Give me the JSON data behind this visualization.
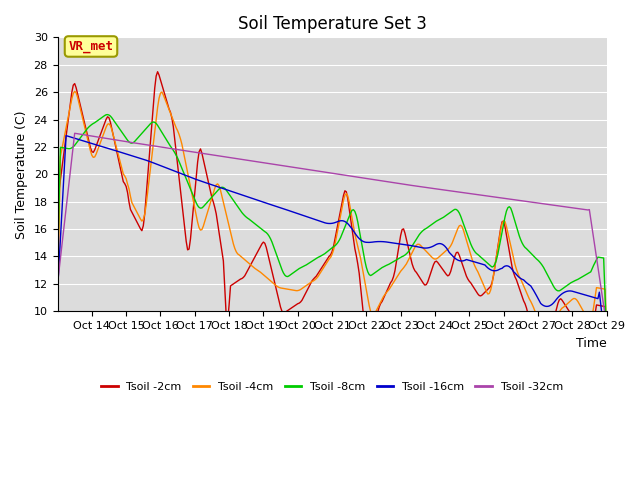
{
  "title": "Soil Temperature Set 3",
  "xlabel": "Time",
  "ylabel": "Soil Temperature (C)",
  "ylim": [
    10,
    30
  ],
  "xlim": [
    0,
    384
  ],
  "xtick_labels": [
    "Oct 14",
    "Oct 15",
    "Oct 16",
    "Oct 17",
    "Oct 18",
    "Oct 19",
    "Oct 20",
    "Oct 21",
    "Oct 22",
    "Oct 23",
    "Oct 24",
    "Oct 25",
    "Oct 26",
    "Oct 27",
    "Oct 28",
    "Oct 29"
  ],
  "xtick_positions": [
    24,
    48,
    72,
    96,
    120,
    144,
    168,
    192,
    216,
    240,
    264,
    288,
    312,
    336,
    360,
    384
  ],
  "ytick_values": [
    10,
    12,
    14,
    16,
    18,
    20,
    22,
    24,
    26,
    28,
    30
  ],
  "colors": {
    "Tsoil -2cm": "#cc0000",
    "Tsoil -4cm": "#ff8800",
    "Tsoil -8cm": "#00cc00",
    "Tsoil -16cm": "#0000cc",
    "Tsoil -32cm": "#aa44aa"
  },
  "bg_color": "#dcdcdc",
  "annotation_text": "VR_met",
  "annotation_color": "#cc0000",
  "annotation_bg": "#ffff99",
  "annotation_border": "#999900",
  "title_fontsize": 12,
  "tick_fontsize": 8,
  "ylabel_fontsize": 9,
  "xlabel_fontsize": 9
}
